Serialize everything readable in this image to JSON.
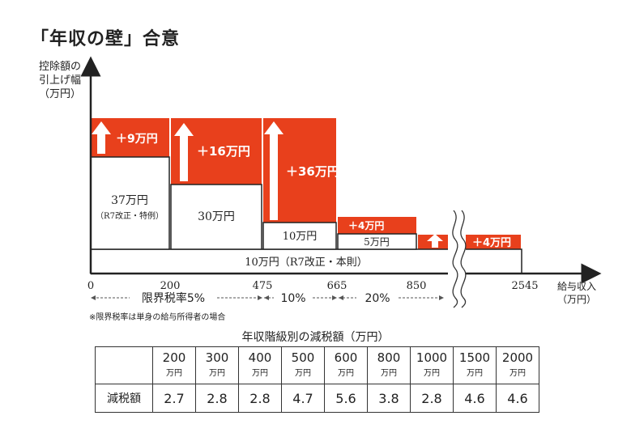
{
  "title": "「年収の壁」合意",
  "y_axis_label": [
    "控除額の",
    "引上げ幅",
    "（万円）"
  ],
  "x_axis_label": [
    "給与収入",
    "（万円）"
  ],
  "x_ticks": [
    "0",
    "200",
    "475",
    "665",
    "850",
    "2545"
  ],
  "blocks": {
    "base": "10万円（R7改正・本則）",
    "b1_value": "37万円",
    "b1_note": "（R7改正・特例）",
    "b2": "30万円",
    "b3": "10万円",
    "b4": "5万円"
  },
  "increases": [
    "＋9万円",
    "＋16万円",
    "＋36万円",
    "＋4万円",
    "＋4万円"
  ],
  "rates": {
    "r1": "限界税率5%",
    "r2": "10%",
    "r3": "20%"
  },
  "note": "※限界税率は単身の給与所得者の場合",
  "colors": {
    "red": "#e8401c",
    "text": "#222222"
  },
  "table": {
    "title": "年収階級別の減税額（万円）",
    "row_label": "減税額",
    "unit": "万円",
    "incomes": [
      "200",
      "300",
      "400",
      "500",
      "600",
      "800",
      "1000",
      "1500",
      "2000"
    ],
    "values": [
      "2.7",
      "2.8",
      "2.8",
      "4.7",
      "5.6",
      "3.8",
      "2.8",
      "4.6",
      "4.6"
    ]
  }
}
